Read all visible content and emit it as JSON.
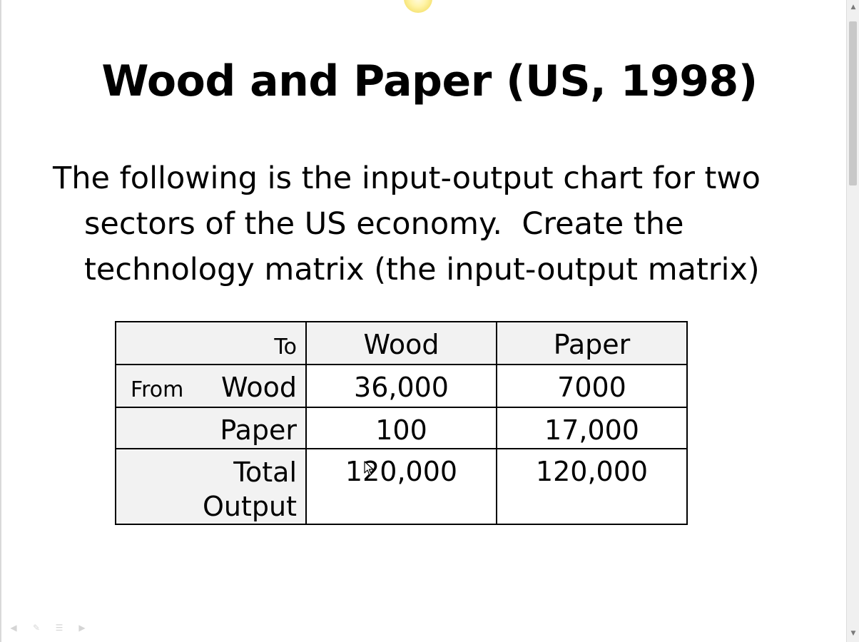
{
  "slide": {
    "title": "Wood and Paper (US, 1998)",
    "body_line_1": "The following is the input-output chart for two",
    "body_line_2": "sectors of the US economy.  Create the",
    "body_line_3": "technology matrix (the input-output matrix)"
  },
  "table": {
    "header": {
      "to_label": "To",
      "columns": [
        "Wood",
        "Paper"
      ]
    },
    "from_label": "From",
    "rows": [
      {
        "label": "Wood",
        "values": [
          "36,000",
          "7000"
        ]
      },
      {
        "label": "Paper",
        "values": [
          "100",
          "17,000"
        ]
      }
    ],
    "total_row": {
      "label_line_1": "Total",
      "label_line_2": "Output",
      "values": [
        "120,000",
        "120,000"
      ]
    }
  },
  "icons": {
    "laser_pointer": "laser-pointer-icon",
    "cursor": "mouse-cursor-icon",
    "slideshow_controls": [
      "previous-arrow-icon",
      "pen-icon",
      "menu-icon",
      "next-arrow-icon"
    ]
  },
  "colors": {
    "background": "#ffffff",
    "label_fill": "#f2f2f2",
    "border": "#000000",
    "laser": "#f7e57a"
  }
}
